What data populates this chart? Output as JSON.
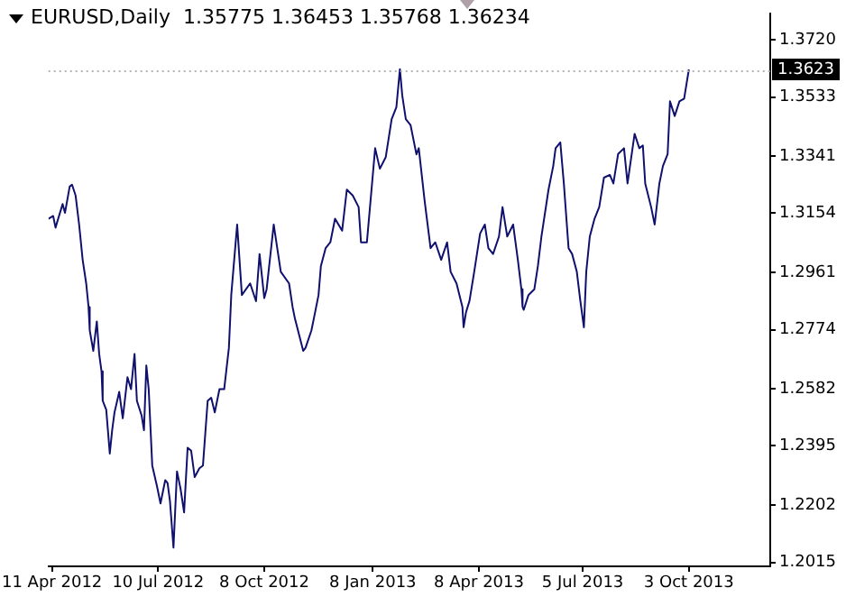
{
  "chart_data": {
    "type": "line",
    "title": "EURUSD,Daily  1.35775 1.36453 1.35768 1.36234",
    "x": [
      "2012-04-08",
      "2012-04-12",
      "2012-04-14",
      "2012-04-20",
      "2012-04-22",
      "2012-04-26",
      "2012-04-28",
      "2012-05-01",
      "2012-05-04",
      "2012-05-07",
      "2012-05-10",
      "2012-05-12",
      "2012-05-13",
      "2012-05-16",
      "2012-05-19",
      "2012-05-21",
      "2012-05-23",
      "2012-05-24",
      "2012-05-27",
      "2012-05-30",
      "2012-06-01",
      "2012-06-03",
      "2012-06-07",
      "2012-06-10",
      "2012-06-14",
      "2012-06-17",
      "2012-06-20",
      "2012-06-22",
      "2012-06-26",
      "2012-06-28",
      "2012-06-30",
      "2012-07-02",
      "2012-07-05",
      "2012-07-09",
      "2012-07-12",
      "2012-07-16",
      "2012-07-18",
      "2012-07-20",
      "2012-07-23",
      "2012-07-26",
      "2012-07-29",
      "2012-08-01",
      "2012-08-04",
      "2012-08-07",
      "2012-08-10",
      "2012-08-14",
      "2012-08-17",
      "2012-08-21",
      "2012-08-24",
      "2012-08-27",
      "2012-08-31",
      "2012-09-04",
      "2012-09-08",
      "2012-09-10",
      "2012-09-15",
      "2012-09-19",
      "2012-09-26",
      "2012-10-01",
      "2012-10-04",
      "2012-10-08",
      "2012-10-10",
      "2012-10-16",
      "2012-10-22",
      "2012-10-29",
      "2012-11-01",
      "2012-11-03",
      "2012-11-10",
      "2012-11-12",
      "2012-11-17",
      "2012-11-19",
      "2012-11-23",
      "2012-11-25",
      "2012-11-29",
      "2012-12-03",
      "2012-12-07",
      "2012-12-13",
      "2012-12-17",
      "2012-12-22",
      "2012-12-27",
      "2012-12-29",
      "2013-01-03",
      "2013-01-10",
      "2013-01-14",
      "2013-01-19",
      "2013-01-24",
      "2013-01-28",
      "2013-01-31",
      "2013-02-02",
      "2013-02-05",
      "2013-02-09",
      "2013-02-14",
      "2013-02-16",
      "2013-02-21",
      "2013-02-26",
      "2013-03-02",
      "2013-03-07",
      "2013-03-12",
      "2013-03-15",
      "2013-03-20",
      "2013-03-25",
      "2013-03-26",
      "2013-03-28",
      "2013-03-31",
      "2013-04-04",
      "2013-04-09",
      "2013-04-13",
      "2013-04-16",
      "2013-04-20",
      "2013-04-25",
      "2013-04-28",
      "2013-05-02",
      "2013-05-07",
      "2013-05-11",
      "2013-05-14",
      "2013-05-15",
      "2013-05-16",
      "2013-05-20",
      "2013-05-25",
      "2013-05-28",
      "2013-05-31",
      "2013-06-06",
      "2013-06-10",
      "2013-06-12",
      "2013-06-16",
      "2013-06-19",
      "2013-06-23",
      "2013-06-26",
      "2013-06-30",
      "2013-07-03",
      "2013-07-06",
      "2013-07-08",
      "2013-07-11",
      "2013-07-15",
      "2013-07-19",
      "2013-07-23",
      "2013-07-28",
      "2013-07-31",
      "2013-08-04",
      "2013-08-09",
      "2013-08-12",
      "2013-08-18",
      "2013-08-22",
      "2013-08-25",
      "2013-08-27",
      "2013-09-01",
      "2013-09-04",
      "2013-09-08",
      "2013-09-11",
      "2013-09-15",
      "2013-09-17",
      "2013-09-21",
      "2013-09-25",
      "2013-09-29",
      "2013-10-03"
    ],
    "series": [
      {
        "color": "#10106e",
        "values": [
          1.3136,
          1.3145,
          1.3107,
          1.3184,
          1.3155,
          1.3241,
          1.3247,
          1.3212,
          1.3117,
          1.3002,
          1.2925,
          1.2848,
          1.2772,
          1.2705,
          1.2801,
          1.2695,
          1.2638,
          1.2542,
          1.2513,
          1.237,
          1.2446,
          1.2504,
          1.2571,
          1.2485,
          1.2619,
          1.258,
          1.2695,
          1.2542,
          1.2494,
          1.2446,
          1.2657,
          1.258,
          1.2331,
          1.2264,
          1.2207,
          1.2283,
          1.2274,
          1.2216,
          1.2063,
          1.2312,
          1.2255,
          1.2178,
          1.2389,
          1.2379,
          1.2293,
          1.2322,
          1.2331,
          1.2542,
          1.2552,
          1.2504,
          1.258,
          1.258,
          1.2715,
          1.2887,
          1.3117,
          1.2887,
          1.2925,
          1.2867,
          1.3021,
          1.2877,
          1.2906,
          1.3117,
          1.2963,
          1.2925,
          1.2848,
          1.281,
          1.2705,
          1.2715,
          1.2772,
          1.281,
          1.2887,
          1.2982,
          1.304,
          1.3059,
          1.3136,
          1.3097,
          1.3231,
          1.3212,
          1.3174,
          1.3059,
          1.3059,
          1.3366,
          1.3299,
          1.3337,
          1.3461,
          1.35,
          1.3624,
          1.3538,
          1.3461,
          1.3442,
          1.3346,
          1.3366,
          1.3193,
          1.304,
          1.3059,
          1.3002,
          1.3059,
          1.2963,
          1.2925,
          1.2848,
          1.2782,
          1.283,
          1.2868,
          1.2963,
          1.3088,
          1.3117,
          1.304,
          1.3021,
          1.3078,
          1.3174,
          1.3078,
          1.3117,
          1.3002,
          1.2906,
          1.2848,
          1.2839,
          1.2887,
          1.2906,
          1.2982,
          1.3078,
          1.3231,
          1.3308,
          1.3366,
          1.3385,
          1.3251,
          1.304,
          1.3021,
          1.2963,
          1.2867,
          1.2782,
          1.2963,
          1.3078,
          1.3136,
          1.3174,
          1.327,
          1.3279,
          1.3251,
          1.3347,
          1.3366,
          1.3251,
          1.3413,
          1.3366,
          1.3375,
          1.3251,
          1.3174,
          1.3117,
          1.3251,
          1.3308,
          1.3347,
          1.3519,
          1.3471,
          1.3519,
          1.3528,
          1.3623
        ]
      }
    ],
    "xlim": [
      "2012-04-08",
      "2013-12-11"
    ],
    "xticks": [
      {
        "value": "2012-04-11",
        "label": "11 Apr 2012"
      },
      {
        "value": "2012-07-10",
        "label": "10 Jul 2012"
      },
      {
        "value": "2012-10-08",
        "label": "8 Oct 2012"
      },
      {
        "value": "2013-01-08",
        "label": "8 Jan 2013"
      },
      {
        "value": "2013-04-08",
        "label": "8 Apr 2013"
      },
      {
        "value": "2013-07-05",
        "label": "5 Jul 2013"
      },
      {
        "value": "2013-10-03",
        "label": "3 Oct 2013"
      }
    ],
    "ylim": [
      1.2002,
      1.3806
    ],
    "yticks": [
      {
        "value": 1.372,
        "label": "1.3720"
      },
      1.3533,
      1.3341,
      1.3154,
      1.2961,
      1.2774,
      1.2582,
      1.2395,
      1.2202,
      1.2015
    ],
    "ref_lines": [
      {
        "axis": "y",
        "value": 1.3623,
        "label": "1.3623",
        "color": "#b4b4b4",
        "line_style": "dotted"
      }
    ],
    "marker": "none",
    "line_style": "solid",
    "legend": false
  }
}
